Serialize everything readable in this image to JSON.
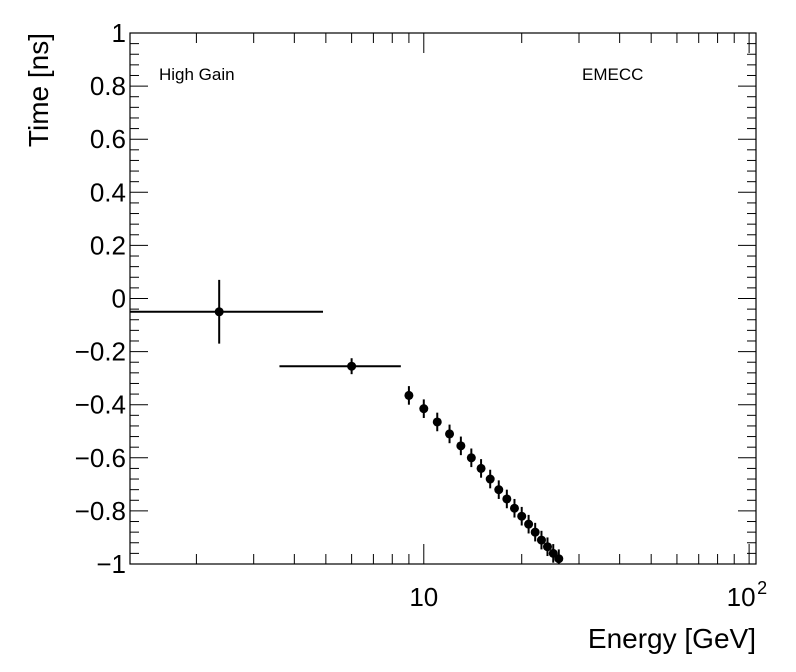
{
  "chart_data": {
    "type": "scatter",
    "title": "",
    "xlabel": "Energy [GeV]",
    "ylabel": "Time [ns]",
    "xscale": "log",
    "xlim": [
      1.25,
      105
    ],
    "ylim": [
      -1,
      1
    ],
    "grid": false,
    "annotations": {
      "left": "High Gain",
      "right": "EMECC"
    },
    "y_ticks": [
      {
        "value": 1,
        "label": "1"
      },
      {
        "value": 0.8,
        "label": "0.8"
      },
      {
        "value": 0.6,
        "label": "0.6"
      },
      {
        "value": 0.4,
        "label": "0.4"
      },
      {
        "value": 0.2,
        "label": "0.2"
      },
      {
        "value": 0,
        "label": "0"
      },
      {
        "value": -0.2,
        "label": "−0.2"
      },
      {
        "value": -0.4,
        "label": "−0.4"
      },
      {
        "value": -0.6,
        "label": "−0.6"
      },
      {
        "value": -0.8,
        "label": "−0.8"
      },
      {
        "value": -1,
        "label": "−1"
      }
    ],
    "x_ticks": [
      {
        "value": 10,
        "label": "10",
        "sup": ""
      },
      {
        "value": 100,
        "label": "10",
        "sup": "2"
      }
    ],
    "series": [
      {
        "name": "High Gain EMECC",
        "points": [
          {
            "x": 2.35,
            "y": -0.05,
            "xlo": 1.25,
            "xhi": 4.9,
            "yerr": 0.12
          },
          {
            "x": 6.0,
            "y": -0.255,
            "xlo": 3.6,
            "xhi": 8.5,
            "yerr": 0.03
          },
          {
            "x": 9.0,
            "y": -0.365,
            "xlo": 8.8,
            "xhi": 9.2,
            "yerr": 0.035
          },
          {
            "x": 10.0,
            "y": -0.415,
            "xlo": 9.8,
            "xhi": 10.2,
            "yerr": 0.035
          },
          {
            "x": 11.0,
            "y": -0.465,
            "xlo": 10.8,
            "xhi": 11.2,
            "yerr": 0.035
          },
          {
            "x": 12.0,
            "y": -0.51,
            "xlo": 11.8,
            "xhi": 12.2,
            "yerr": 0.035
          },
          {
            "x": 13.0,
            "y": -0.555,
            "xlo": 12.8,
            "xhi": 13.2,
            "yerr": 0.035
          },
          {
            "x": 14.0,
            "y": -0.6,
            "xlo": 13.8,
            "xhi": 14.2,
            "yerr": 0.035
          },
          {
            "x": 15.0,
            "y": -0.64,
            "xlo": 14.8,
            "xhi": 15.2,
            "yerr": 0.035
          },
          {
            "x": 16.0,
            "y": -0.68,
            "xlo": 15.8,
            "xhi": 16.2,
            "yerr": 0.035
          },
          {
            "x": 17.0,
            "y": -0.72,
            "xlo": 16.8,
            "xhi": 17.2,
            "yerr": 0.035
          },
          {
            "x": 18.0,
            "y": -0.755,
            "xlo": 17.8,
            "xhi": 18.2,
            "yerr": 0.035
          },
          {
            "x": 19.0,
            "y": -0.79,
            "xlo": 18.8,
            "xhi": 19.2,
            "yerr": 0.035
          },
          {
            "x": 20.0,
            "y": -0.82,
            "xlo": 19.8,
            "xhi": 20.2,
            "yerr": 0.035
          },
          {
            "x": 21.0,
            "y": -0.85,
            "xlo": 20.8,
            "xhi": 21.2,
            "yerr": 0.035
          },
          {
            "x": 22.0,
            "y": -0.88,
            "xlo": 21.8,
            "xhi": 22.2,
            "yerr": 0.035
          },
          {
            "x": 23.0,
            "y": -0.91,
            "xlo": 22.8,
            "xhi": 23.2,
            "yerr": 0.035
          },
          {
            "x": 24.0,
            "y": -0.935,
            "xlo": 23.8,
            "xhi": 24.2,
            "yerr": 0.035
          },
          {
            "x": 25.0,
            "y": -0.96,
            "xlo": 24.8,
            "xhi": 25.2,
            "yerr": 0.035
          },
          {
            "x": 26.0,
            "y": -0.98,
            "xlo": 25.8,
            "xhi": 26.2,
            "yerr": 0.035
          }
        ]
      }
    ]
  }
}
